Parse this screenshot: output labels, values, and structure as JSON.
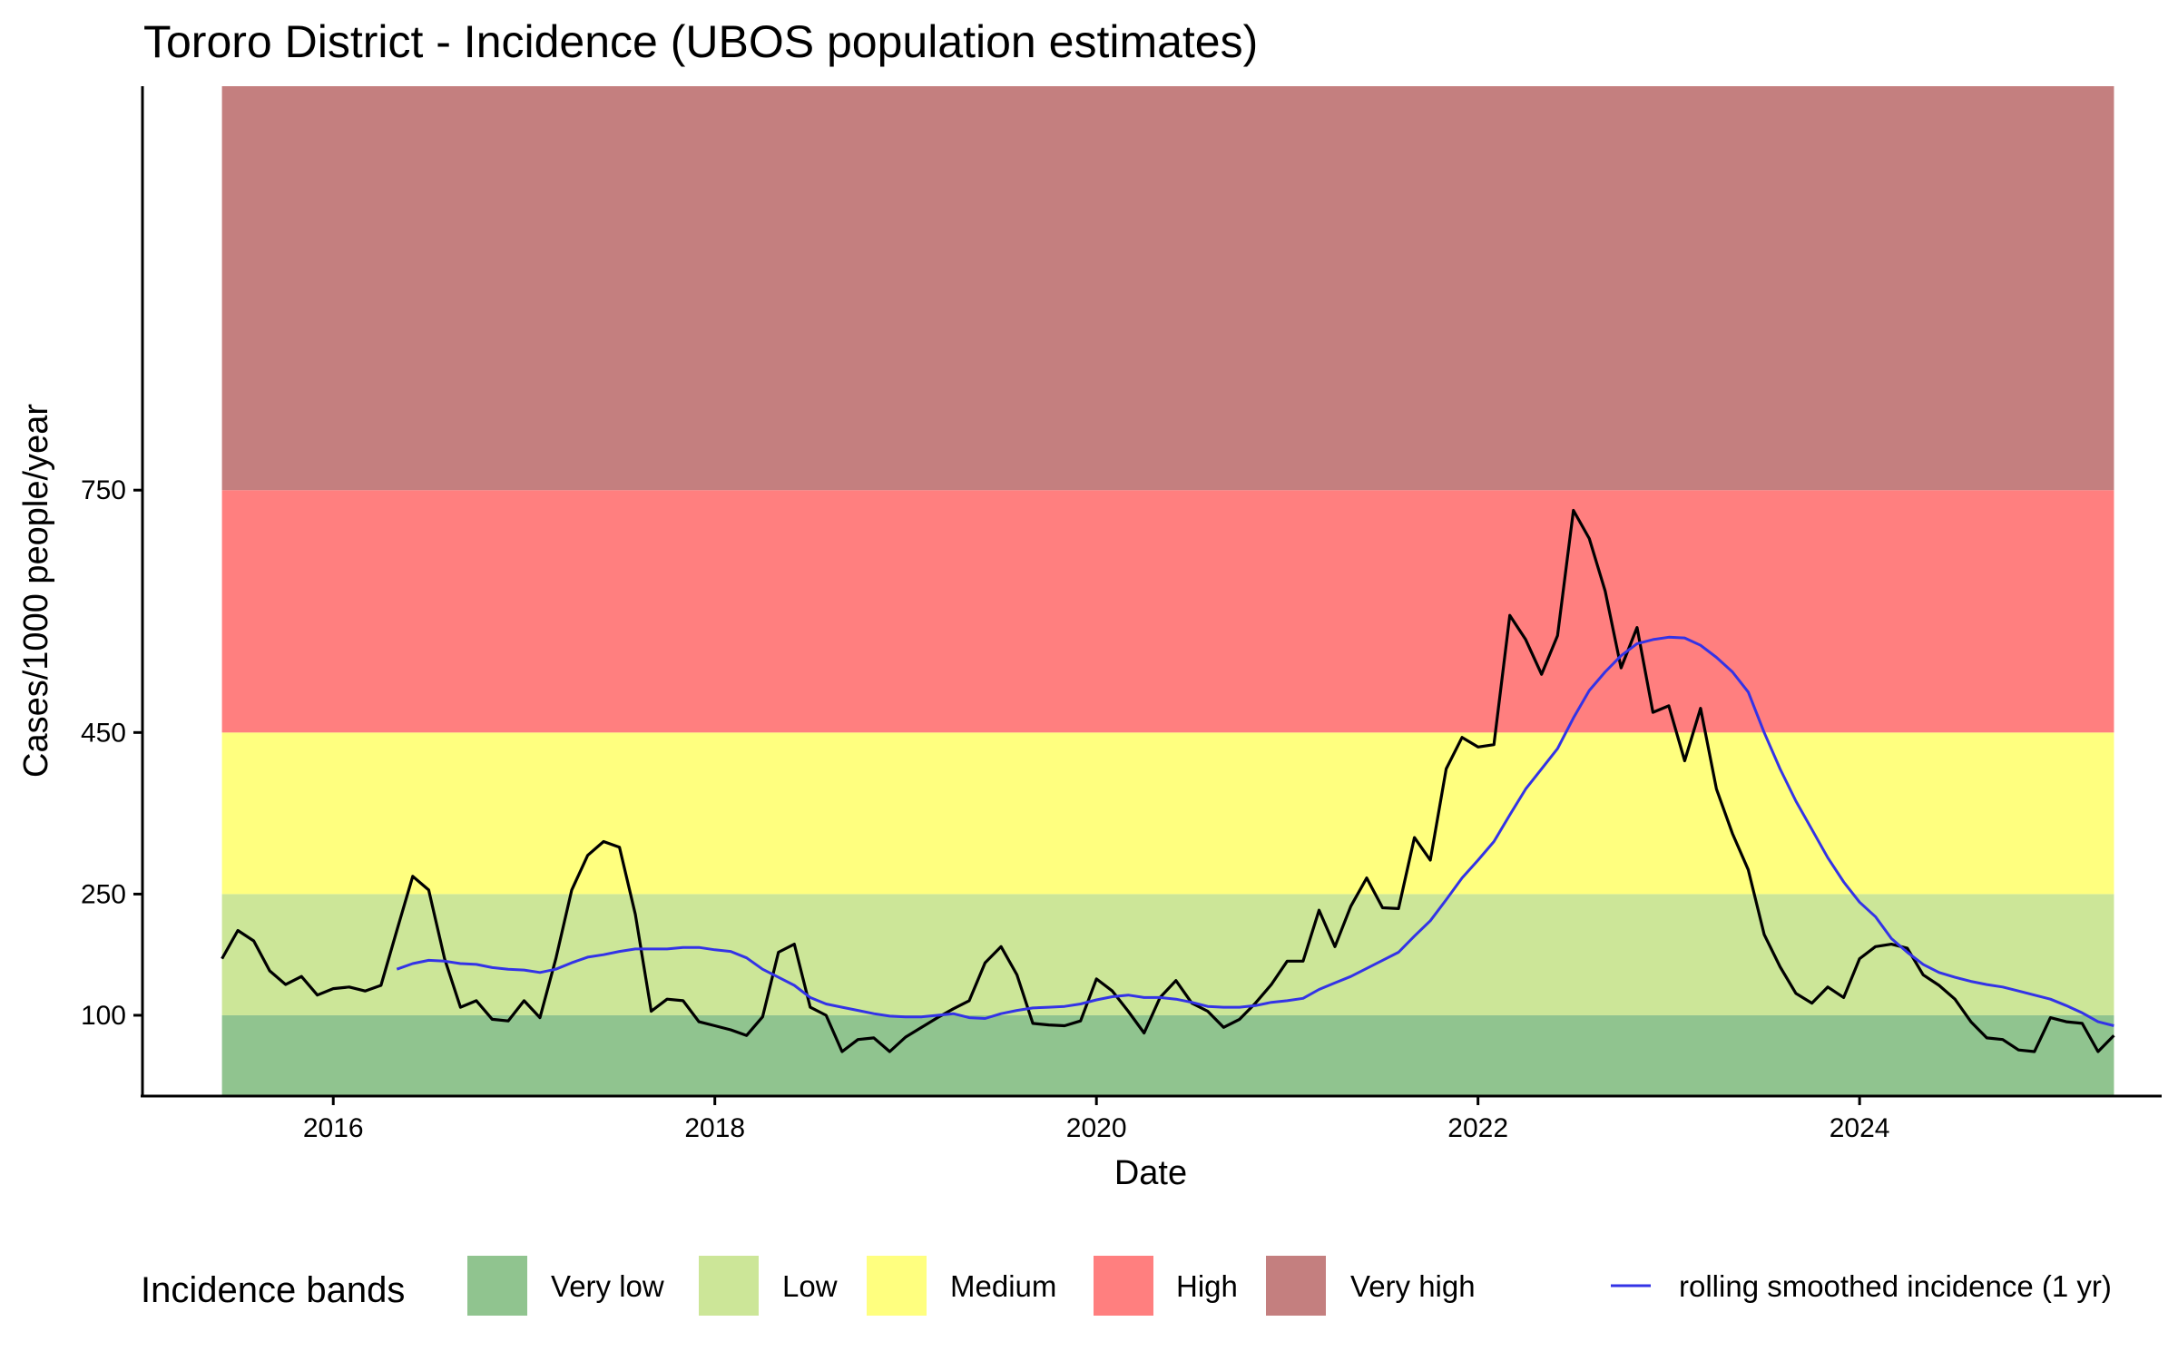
{
  "chart_data": {
    "type": "line",
    "title": "Tororo District - Incidence (UBOS population estimates)",
    "xlabel": "Date",
    "ylabel": "Cases/1000 people/year",
    "xlim": [
      "2015-01-01",
      "2025-08-01"
    ],
    "ylim": [
      0,
      1250
    ],
    "x_ticks": [
      "2016",
      "2018",
      "2020",
      "2022",
      "2024"
    ],
    "y_ticks": [
      100,
      250,
      450,
      750
    ],
    "grid": false,
    "legend_position": "bottom",
    "legend_title": "Incidence bands",
    "bands": [
      {
        "label": "Very low",
        "from": 0,
        "to": 100,
        "color": "#90c48f"
      },
      {
        "label": "Low",
        "from": 100,
        "to": 250,
        "color": "#cce698"
      },
      {
        "label": "Medium",
        "from": 250,
        "to": 450,
        "color": "#ffff7f"
      },
      {
        "label": "High",
        "from": 450,
        "to": 750,
        "color": "#ff7f7f"
      },
      {
        "label": "Very high",
        "from": 750,
        "to": 1250,
        "color": "#c47f7f"
      }
    ],
    "band_x_range": [
      "2015-06-01",
      "2025-05-01"
    ],
    "series": [
      {
        "color": "#000000",
        "points": [
          [
            "2015-06-01",
            170
          ],
          [
            "2015-07-01",
            205
          ],
          [
            "2015-08-01",
            192
          ],
          [
            "2015-09-01",
            155
          ],
          [
            "2015-10-01",
            138
          ],
          [
            "2015-11-01",
            148
          ],
          [
            "2015-12-01",
            125
          ],
          [
            "2016-01-01",
            133
          ],
          [
            "2016-02-01",
            135
          ],
          [
            "2016-03-01",
            130
          ],
          [
            "2016-04-01",
            137
          ],
          [
            "2016-05-01",
            205
          ],
          [
            "2016-06-01",
            272
          ],
          [
            "2016-07-01",
            255
          ],
          [
            "2016-08-01",
            170
          ],
          [
            "2016-09-01",
            110
          ],
          [
            "2016-10-01",
            118
          ],
          [
            "2016-11-01",
            95
          ],
          [
            "2016-12-01",
            93
          ],
          [
            "2017-01-01",
            118
          ],
          [
            "2017-02-01",
            97
          ],
          [
            "2017-03-01",
            170
          ],
          [
            "2017-04-01",
            255
          ],
          [
            "2017-05-01",
            298
          ],
          [
            "2017-06-01",
            315
          ],
          [
            "2017-07-01",
            308
          ],
          [
            "2017-08-01",
            225
          ],
          [
            "2017-09-01",
            105
          ],
          [
            "2017-10-01",
            120
          ],
          [
            "2017-11-01",
            118
          ],
          [
            "2017-12-01",
            92
          ],
          [
            "2018-01-01",
            87
          ],
          [
            "2018-02-01",
            82
          ],
          [
            "2018-03-01",
            75
          ],
          [
            "2018-04-01",
            98
          ],
          [
            "2018-05-01",
            178
          ],
          [
            "2018-06-01",
            188
          ],
          [
            "2018-07-01",
            110
          ],
          [
            "2018-08-01",
            100
          ],
          [
            "2018-09-01",
            55
          ],
          [
            "2018-10-01",
            70
          ],
          [
            "2018-11-01",
            72
          ],
          [
            "2018-12-01",
            55
          ],
          [
            "2019-01-01",
            73
          ],
          [
            "2019-02-01",
            85
          ],
          [
            "2019-03-01",
            97
          ],
          [
            "2019-04-01",
            108
          ],
          [
            "2019-05-01",
            118
          ],
          [
            "2019-06-01",
            165
          ],
          [
            "2019-07-01",
            185
          ],
          [
            "2019-08-01",
            150
          ],
          [
            "2019-09-01",
            90
          ],
          [
            "2019-10-01",
            88
          ],
          [
            "2019-11-01",
            87
          ],
          [
            "2019-12-01",
            93
          ],
          [
            "2020-01-01",
            145
          ],
          [
            "2020-02-01",
            130
          ],
          [
            "2020-03-01",
            105
          ],
          [
            "2020-04-01",
            78
          ],
          [
            "2020-05-01",
            122
          ],
          [
            "2020-06-01",
            143
          ],
          [
            "2020-07-01",
            115
          ],
          [
            "2020-08-01",
            105
          ],
          [
            "2020-09-01",
            85
          ],
          [
            "2020-10-01",
            95
          ],
          [
            "2020-11-01",
            115
          ],
          [
            "2020-12-01",
            138
          ],
          [
            "2021-01-01",
            167
          ],
          [
            "2021-02-01",
            167
          ],
          [
            "2021-03-01",
            230
          ],
          [
            "2021-04-01",
            185
          ],
          [
            "2021-05-01",
            235
          ],
          [
            "2021-06-01",
            270
          ],
          [
            "2021-07-01",
            233
          ],
          [
            "2021-08-01",
            232
          ],
          [
            "2021-09-01",
            320
          ],
          [
            "2021-10-01",
            292
          ],
          [
            "2021-11-01",
            405
          ],
          [
            "2021-12-01",
            444
          ],
          [
            "2022-01-01",
            432
          ],
          [
            "2022-02-01",
            435
          ],
          [
            "2022-03-01",
            595
          ],
          [
            "2022-04-01",
            565
          ],
          [
            "2022-05-01",
            522
          ],
          [
            "2022-06-01",
            570
          ],
          [
            "2022-07-01",
            725
          ],
          [
            "2022-08-01",
            690
          ],
          [
            "2022-09-01",
            625
          ],
          [
            "2022-10-01",
            530
          ],
          [
            "2022-11-01",
            580
          ],
          [
            "2022-12-01",
            475
          ],
          [
            "2023-01-01",
            483
          ],
          [
            "2023-02-01",
            415
          ],
          [
            "2023-03-01",
            480
          ],
          [
            "2023-04-01",
            380
          ],
          [
            "2023-05-01",
            325
          ],
          [
            "2023-06-01",
            280
          ],
          [
            "2023-07-01",
            200
          ],
          [
            "2023-08-01",
            160
          ],
          [
            "2023-09-01",
            127
          ],
          [
            "2023-10-01",
            115
          ],
          [
            "2023-11-01",
            135
          ],
          [
            "2023-12-01",
            122
          ],
          [
            "2024-01-01",
            170
          ],
          [
            "2024-02-01",
            185
          ],
          [
            "2024-03-01",
            188
          ],
          [
            "2024-04-01",
            183
          ],
          [
            "2024-05-01",
            150
          ],
          [
            "2024-06-01",
            137
          ],
          [
            "2024-07-01",
            120
          ],
          [
            "2024-08-01",
            92
          ],
          [
            "2024-09-01",
            72
          ],
          [
            "2024-10-01",
            70
          ],
          [
            "2024-11-01",
            57
          ],
          [
            "2024-12-01",
            55
          ],
          [
            "2025-01-01",
            97
          ],
          [
            "2025-02-01",
            92
          ],
          [
            "2025-03-01",
            90
          ],
          [
            "2025-04-01",
            55
          ],
          [
            "2025-05-01",
            75
          ]
        ]
      },
      {
        "name": "rolling smoothed incidence (1 yr)",
        "color": "#3333e6",
        "points": [
          [
            "2016-05-01",
            157
          ],
          [
            "2016-06-01",
            164
          ],
          [
            "2016-07-01",
            168
          ],
          [
            "2016-08-01",
            167
          ],
          [
            "2016-09-01",
            164
          ],
          [
            "2016-10-01",
            163
          ],
          [
            "2016-11-01",
            159
          ],
          [
            "2016-12-01",
            157
          ],
          [
            "2017-01-01",
            156
          ],
          [
            "2017-02-01",
            153
          ],
          [
            "2017-03-01",
            157
          ],
          [
            "2017-04-01",
            165
          ],
          [
            "2017-05-01",
            172
          ],
          [
            "2017-06-01",
            175
          ],
          [
            "2017-07-01",
            179
          ],
          [
            "2017-08-01",
            182
          ],
          [
            "2017-09-01",
            182
          ],
          [
            "2017-10-01",
            182
          ],
          [
            "2017-11-01",
            184
          ],
          [
            "2017-12-01",
            184
          ],
          [
            "2018-01-01",
            181
          ],
          [
            "2018-02-01",
            179
          ],
          [
            "2018-03-01",
            171
          ],
          [
            "2018-04-01",
            157
          ],
          [
            "2018-05-01",
            147
          ],
          [
            "2018-06-01",
            137
          ],
          [
            "2018-07-01",
            122
          ],
          [
            "2018-08-01",
            114
          ],
          [
            "2018-09-01",
            110
          ],
          [
            "2018-10-01",
            106
          ],
          [
            "2018-11-01",
            102
          ],
          [
            "2018-12-01",
            99
          ],
          [
            "2019-01-01",
            98
          ],
          [
            "2019-02-01",
            98
          ],
          [
            "2019-03-01",
            100
          ],
          [
            "2019-04-01",
            102
          ],
          [
            "2019-05-01",
            97
          ],
          [
            "2019-06-01",
            96
          ],
          [
            "2019-07-01",
            102
          ],
          [
            "2019-08-01",
            106
          ],
          [
            "2019-09-01",
            109
          ],
          [
            "2019-10-01",
            110
          ],
          [
            "2019-11-01",
            111
          ],
          [
            "2019-12-01",
            114
          ],
          [
            "2020-01-01",
            119
          ],
          [
            "2020-02-01",
            123
          ],
          [
            "2020-03-01",
            125
          ],
          [
            "2020-04-01",
            122
          ],
          [
            "2020-05-01",
            122
          ],
          [
            "2020-06-01",
            120
          ],
          [
            "2020-07-01",
            116
          ],
          [
            "2020-08-01",
            111
          ],
          [
            "2020-09-01",
            110
          ],
          [
            "2020-10-01",
            110
          ],
          [
            "2020-11-01",
            112
          ],
          [
            "2020-12-01",
            116
          ],
          [
            "2021-01-01",
            118
          ],
          [
            "2021-02-01",
            121
          ],
          [
            "2021-03-01",
            132
          ],
          [
            "2021-04-01",
            140
          ],
          [
            "2021-05-01",
            148
          ],
          [
            "2021-06-01",
            158
          ],
          [
            "2021-07-01",
            168
          ],
          [
            "2021-08-01",
            178
          ],
          [
            "2021-09-01",
            198
          ],
          [
            "2021-10-01",
            217
          ],
          [
            "2021-11-01",
            243
          ],
          [
            "2021-12-01",
            270
          ],
          [
            "2022-01-01",
            292
          ],
          [
            "2022-02-01",
            315
          ],
          [
            "2022-03-01",
            348
          ],
          [
            "2022-04-01",
            380
          ],
          [
            "2022-05-01",
            405
          ],
          [
            "2022-06-01",
            430
          ],
          [
            "2022-07-01",
            468
          ],
          [
            "2022-08-01",
            502
          ],
          [
            "2022-09-01",
            525
          ],
          [
            "2022-10-01",
            545
          ],
          [
            "2022-11-01",
            560
          ],
          [
            "2022-12-01",
            565
          ],
          [
            "2023-01-01",
            568
          ],
          [
            "2023-02-01",
            567
          ],
          [
            "2023-03-01",
            558
          ],
          [
            "2023-04-01",
            543
          ],
          [
            "2023-05-01",
            525
          ],
          [
            "2023-06-01",
            500
          ],
          [
            "2023-07-01",
            450
          ],
          [
            "2023-08-01",
            405
          ],
          [
            "2023-09-01",
            365
          ],
          [
            "2023-10-01",
            330
          ],
          [
            "2023-11-01",
            295
          ],
          [
            "2023-12-01",
            265
          ],
          [
            "2024-01-01",
            240
          ],
          [
            "2024-02-01",
            222
          ],
          [
            "2024-03-01",
            195
          ],
          [
            "2024-04-01",
            178
          ],
          [
            "2024-05-01",
            163
          ],
          [
            "2024-06-01",
            153
          ],
          [
            "2024-07-01",
            147
          ],
          [
            "2024-08-01",
            142
          ],
          [
            "2024-09-01",
            138
          ],
          [
            "2024-10-01",
            135
          ],
          [
            "2024-11-01",
            130
          ],
          [
            "2024-12-01",
            125
          ],
          [
            "2025-01-01",
            120
          ],
          [
            "2025-02-01",
            112
          ],
          [
            "2025-03-01",
            103
          ],
          [
            "2025-04-01",
            92
          ],
          [
            "2025-05-01",
            87
          ]
        ]
      }
    ]
  }
}
